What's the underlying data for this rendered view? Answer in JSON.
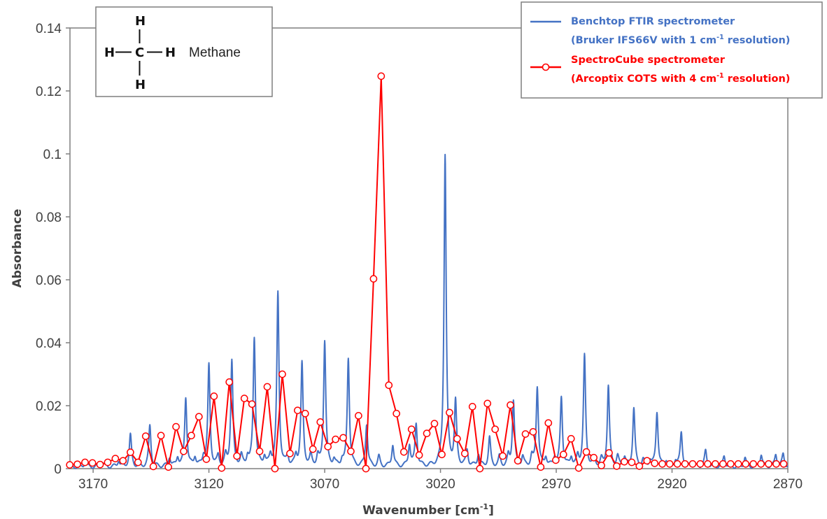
{
  "chart_data": {
    "type": "line",
    "title": "",
    "xlabel": "Wavenumber [cm",
    "xlabel_sup": "-1",
    "xlabel_close": "]",
    "ylabel": "Absorbance",
    "xlim": [
      3180,
      2870
    ],
    "x_reversed": true,
    "ylim": [
      0,
      0.14
    ],
    "x_ticks": [
      3170,
      3120,
      3070,
      3020,
      2970,
      2920,
      2870
    ],
    "y_tick_labels": [
      "0",
      "0.02",
      "0.04",
      "0.06",
      "0.08",
      "0.1",
      "0.12",
      "0.14"
    ],
    "y_ticks": [
      0,
      0.02,
      0.04,
      0.06,
      0.08,
      0.1,
      0.12,
      0.14
    ],
    "grid": false,
    "legend_position": "top-right",
    "series": [
      {
        "name": "Benchtop FTIR spectrometer (Bruker IFS66V with 1 cm-1 resolution)",
        "legend_line1": "Benchtop FTIR spectrometer",
        "legend_line2_pre": "(Bruker IFS66V with 1 cm",
        "legend_line2_sup": "-1",
        "legend_line2_post": " resolution)",
        "color": "#4472C4",
        "style": "line",
        "baseline_ripple": 0.0012,
        "peaks": [
          [
            3173.5,
            0.0015
          ],
          [
            3166,
            0.0015
          ],
          [
            3159,
            0.002
          ],
          [
            3153.9,
            0.01
          ],
          [
            3145.5,
            0.013
          ],
          [
            3137,
            0.003
          ],
          [
            3133.5,
            0.003
          ],
          [
            3130.0,
            0.022
          ],
          [
            3126,
            0.003
          ],
          [
            3122.3,
            0.003
          ],
          [
            3120.0,
            0.032
          ],
          [
            3116,
            0.003
          ],
          [
            3112.8,
            0.003
          ],
          [
            3110.1,
            0.0335
          ],
          [
            3106,
            0.003
          ],
          [
            3103.3,
            0.003
          ],
          [
            3100.4,
            0.041
          ],
          [
            3096,
            0.003
          ],
          [
            3093.4,
            0.003
          ],
          [
            3090.2,
            0.055
          ],
          [
            3086,
            0.003
          ],
          [
            3082.4,
            0.003
          ],
          [
            3079.8,
            0.0325
          ],
          [
            3076,
            0.003
          ],
          [
            3073.0,
            0.003
          ],
          [
            3070.0,
            0.04
          ],
          [
            3066,
            0.002
          ],
          [
            3062.5,
            0.002
          ],
          [
            3059.8,
            0.0345
          ],
          [
            3051.9,
            0.0135
          ],
          [
            3046.6,
            0.003
          ],
          [
            3040.6,
            0.007
          ],
          [
            3033.4,
            0.007
          ],
          [
            3030.5,
            0.0135
          ],
          [
            3018.0,
            0.099
          ],
          [
            3013.5,
            0.02
          ],
          [
            3008.5,
            0.005
          ],
          [
            3003.6,
            0.004
          ],
          [
            2998.8,
            0.009
          ],
          [
            2994.5,
            0.003
          ],
          [
            2990.7,
            0.003
          ],
          [
            2988.5,
            0.021
          ],
          [
            2984.5,
            0.003
          ],
          [
            2980.6,
            0.003
          ],
          [
            2978.2,
            0.0255
          ],
          [
            2974.5,
            0.003
          ],
          [
            2970.7,
            0.003
          ],
          [
            2967.8,
            0.022
          ],
          [
            2963.5,
            0.003
          ],
          [
            2960.7,
            0.003
          ],
          [
            2957.8,
            0.035
          ],
          [
            2953.5,
            0.002
          ],
          [
            2950.5,
            0.002
          ],
          [
            2947.5,
            0.0255
          ],
          [
            2943.5,
            0.003
          ],
          [
            2940.5,
            0.003
          ],
          [
            2936.5,
            0.0185
          ],
          [
            2932.5,
            0.002
          ],
          [
            2929.5,
            0.002
          ],
          [
            2926.5,
            0.0175
          ],
          [
            2922.5,
            0.002
          ],
          [
            2918.5,
            0.002
          ],
          [
            2916.0,
            0.011
          ],
          [
            2911.5,
            0.002
          ],
          [
            2905.5,
            0.005
          ],
          [
            2897.5,
            0.0035
          ],
          [
            2888.5,
            0.003
          ],
          [
            2881.5,
            0.004
          ],
          [
            2875.2,
            0.004
          ],
          [
            2872,
            0.004
          ]
        ]
      },
      {
        "name": "SpectroCube spectrometer (Arcoptix COTS with 4 cm-1 resolution)",
        "legend_line1": "SpectroCube spectrometer",
        "legend_line2_pre": "(Arcoptix COTS with 4 cm",
        "legend_line2_sup": "-1",
        "legend_line2_post": " resolution)",
        "color": "#FF0000",
        "style": "line-with-open-circles",
        "x": [
          3180.1,
          3176.8,
          3173.5,
          3170.3,
          3167.0,
          3163.7,
          3160.4,
          3157.1,
          3153.9,
          3150.6,
          3147.3,
          3144.0,
          3140.7,
          3137.5,
          3134.2,
          3130.9,
          3127.6,
          3124.3,
          3121.1,
          3117.8,
          3114.5,
          3111.2,
          3107.9,
          3104.7,
          3101.4,
          3098.1,
          3094.8,
          3091.5,
          3088.3,
          3085.0,
          3081.7,
          3078.4,
          3075.1,
          3071.9,
          3068.6,
          3065.3,
          3062.0,
          3058.7,
          3055.4,
          3052.2,
          3048.9,
          3045.6,
          3042.3,
          3039.0,
          3035.8,
          3032.5,
          3029.2,
          3025.9,
          3022.6,
          3019.4,
          3016.1,
          3012.8,
          3009.5,
          3006.2,
          3003.0,
          2999.7,
          2996.4,
          2993.1,
          2989.8,
          2986.6,
          2983.3,
          2980.0,
          2976.7,
          2973.4,
          2970.2,
          2966.9,
          2963.6,
          2960.3,
          2957.0,
          2953.8,
          2950.5,
          2947.2,
          2943.9,
          2940.6,
          2937.4,
          2934.1,
          2930.8,
          2927.5,
          2924.2,
          2921.0,
          2917.7,
          2914.4,
          2911.1,
          2907.8,
          2904.6,
          2901.3,
          2898.0,
          2894.7,
          2891.4,
          2888.2,
          2884.9,
          2881.6,
          2878.3,
          2875.0,
          2871.8
        ],
        "y": [
          0.0012,
          0.0014,
          0.002,
          0.0018,
          0.0013,
          0.002,
          0.0032,
          0.0025,
          0.0052,
          0.002,
          0.0103,
          0.0007,
          0.0105,
          0.0005,
          0.0133,
          0.0055,
          0.0105,
          0.0165,
          0.003,
          0.023,
          0.0002,
          0.0275,
          0.004,
          0.0223,
          0.0205,
          0.0055,
          0.026,
          0.0,
          0.03,
          0.0048,
          0.0185,
          0.0175,
          0.0062,
          0.0148,
          0.007,
          0.0093,
          0.0098,
          0.0055,
          0.0168,
          0.0,
          0.0603,
          0.1247,
          0.0265,
          0.0175,
          0.0053,
          0.0125,
          0.0043,
          0.0112,
          0.0143,
          0.0045,
          0.0178,
          0.0095,
          0.0048,
          0.0197,
          0.0,
          0.0207,
          0.0125,
          0.004,
          0.0202,
          0.0025,
          0.011,
          0.0117,
          0.0005,
          0.0145,
          0.0027,
          0.0045,
          0.0095,
          0.0002,
          0.0053,
          0.0035,
          0.001,
          0.005,
          0.0008,
          0.0022,
          0.002,
          0.0008,
          0.0025,
          0.0017,
          0.0015,
          0.0015,
          0.0015,
          0.0015,
          0.0015,
          0.0015,
          0.0015,
          0.0015,
          0.0015,
          0.0015,
          0.0015,
          0.0015,
          0.0015,
          0.0015,
          0.0015,
          0.0015,
          0.0015
        ]
      }
    ],
    "inset": {
      "molecule_atoms": [
        "H",
        "H",
        "C",
        "H",
        "H"
      ],
      "molecule_name": "Methane"
    }
  }
}
